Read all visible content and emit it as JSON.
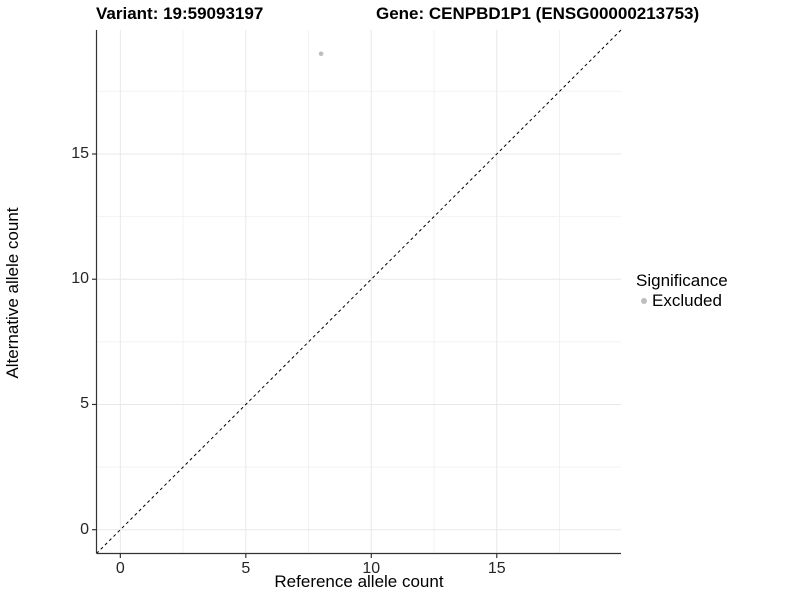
{
  "chart_data": {
    "type": "scatter",
    "title_left": "Variant: 19:59093197",
    "title_right": "Gene: CENPBD1P1 (ENSG00000213753)",
    "xlabel": "Reference allele count",
    "ylabel": "Alternative allele count",
    "xlim": [
      -0.95,
      19.95
    ],
    "ylim": [
      -0.95,
      19.95
    ],
    "x_ticks": [
      0,
      5,
      10,
      15
    ],
    "y_ticks": [
      0,
      5,
      10,
      15
    ],
    "x_minor_ticks": [
      2.5,
      7.5,
      12.5,
      17.5
    ],
    "y_minor_ticks": [
      2.5,
      7.5,
      12.5,
      17.5
    ],
    "grid": true,
    "series": [
      {
        "name": "Excluded",
        "color": "#bebebe",
        "points": [
          {
            "x": 8,
            "y": 19
          }
        ]
      }
    ],
    "reference_line": {
      "type": "identity",
      "style": "dashed",
      "color": "#000000"
    },
    "legend": {
      "title": "Significance",
      "position": "right",
      "items": [
        {
          "label": "Excluded",
          "color": "#bebebe",
          "marker": "circle"
        }
      ]
    },
    "colors": {
      "panel_background": "#ffffff",
      "axis_line": "#333333",
      "major_grid": "#e8e8e8",
      "minor_grid": "#f2f2f2",
      "tick_text": "#262626",
      "point": "#bebebe"
    }
  }
}
